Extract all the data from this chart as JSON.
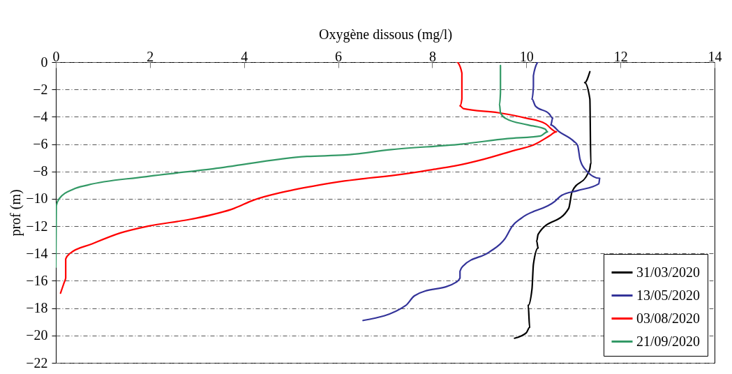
{
  "chart_data": {
    "type": "line",
    "xlabel": "Oxygène dissous (mg/l)",
    "ylabel": "prof (m)",
    "xlim": [
      0,
      14
    ],
    "xticks": [
      0,
      2,
      4,
      6,
      8,
      10,
      12,
      14
    ],
    "ylim": [
      -22,
      0
    ],
    "yticks": [
      0,
      -2,
      -4,
      -6,
      -8,
      -10,
      -12,
      -14,
      -16,
      -18,
      -20,
      -22
    ],
    "grid": "y",
    "legend": "bottom right",
    "series": [
      {
        "name": "31/03/2020",
        "color": "#000000",
        "x": [
          11.35,
          11.24,
          11.35,
          11.37,
          11.35,
          11.3,
          10.97,
          10.9,
          10.25,
          10.22,
          10.25,
          10.15,
          10.12,
          10.04,
          10.07,
          10.0,
          9.75
        ],
        "values": [
          -0.7,
          -1.5,
          -2.7,
          -7.4,
          -7.8,
          -8.2,
          -9.5,
          -10.7,
          -12.6,
          -13.1,
          -13.6,
          -14.8,
          -16.6,
          -17.8,
          -19.4,
          -19.8,
          -20.2
        ]
      },
      {
        "name": "13/05/2020",
        "color": "#333399",
        "x": [
          10.24,
          10.15,
          10.15,
          10.12,
          10.19,
          10.49,
          10.56,
          10.52,
          10.7,
          11.01,
          11.09,
          11.14,
          11.24,
          11.56,
          11.54,
          11.09,
          10.75,
          10.6,
          9.9,
          9.7,
          9.55,
          9.21,
          8.66,
          8.59,
          8.59,
          8.51,
          7.62,
          7.44,
          6.53
        ],
        "values": [
          0,
          -1.0,
          -1.8,
          -2.7,
          -3.2,
          -3.8,
          -4.1,
          -4.6,
          -5.1,
          -5.8,
          -6.1,
          -7.1,
          -7.8,
          -8.5,
          -8.9,
          -9.4,
          -9.75,
          -10.2,
          -11.4,
          -12.0,
          -12.9,
          -13.9,
          -14.9,
          -15.3,
          -15.8,
          -16.1,
          -17.1,
          -17.8,
          -18.9
        ]
      },
      {
        "name": "03/08/2020",
        "color": "#ff0000",
        "x": [
          8.54,
          8.63,
          8.63,
          8.59,
          8.66,
          9.4,
          10.0,
          10.4,
          10.64,
          10.49,
          10.19,
          9.7,
          9.1,
          8.47,
          8.11,
          7.37,
          6.13,
          5.58,
          4.84,
          4.2,
          3.79,
          2.86,
          1.96,
          1.37,
          0.77,
          0.3,
          0.21,
          0.21,
          0.18,
          0.1
        ],
        "values": [
          0,
          -0.8,
          -2.7,
          -3.2,
          -3.4,
          -3.7,
          -4.1,
          -4.5,
          -5.1,
          -5.4,
          -6.0,
          -6.5,
          -7.1,
          -7.6,
          -7.8,
          -8.2,
          -8.7,
          -9.0,
          -9.5,
          -10.1,
          -10.7,
          -11.5,
          -12.0,
          -12.5,
          -13.3,
          -14.0,
          -14.4,
          -15.8,
          -16.1,
          -16.9
        ]
      },
      {
        "name": "21/09/2020",
        "color": "#339966",
        "x": [
          9.45,
          9.45,
          9.43,
          9.45,
          9.55,
          10.04,
          10.4,
          10.45,
          10.3,
          9.6,
          8.61,
          7.13,
          6.13,
          5.34,
          3.35,
          1.86,
          0.67,
          0.37,
          0.07,
          0.01,
          0.0
        ],
        "values": [
          -0.25,
          -2.2,
          -3.1,
          -3.7,
          -4.1,
          -4.6,
          -4.9,
          -5.1,
          -5.4,
          -5.6,
          -6.0,
          -6.4,
          -6.8,
          -6.9,
          -7.8,
          -8.4,
          -9.0,
          -9.3,
          -10.0,
          -10.5,
          -15.0
        ]
      }
    ]
  }
}
